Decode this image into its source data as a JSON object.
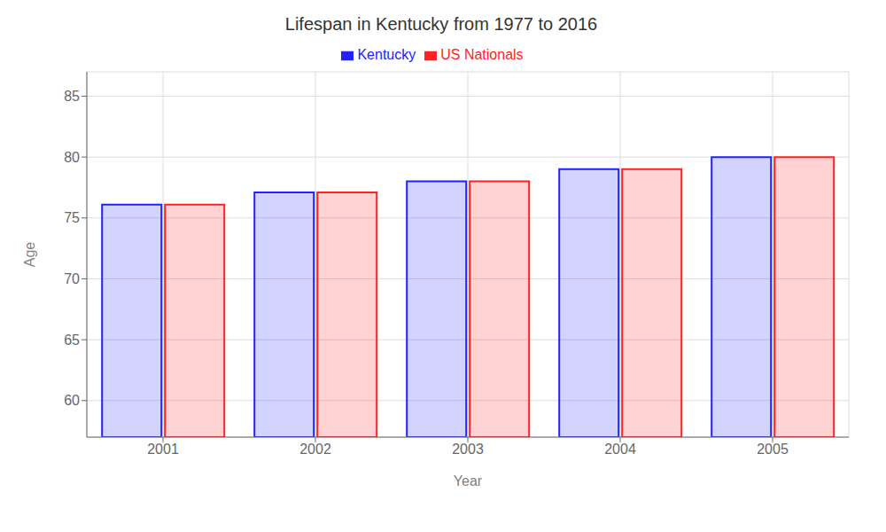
{
  "chart_data": {
    "type": "bar",
    "title": "Lifespan in Kentucky from 1977 to 2016",
    "xlabel": "Year",
    "ylabel": "Age",
    "categories": [
      "2001",
      "2002",
      "2003",
      "2004",
      "2005"
    ],
    "series": [
      {
        "name": "Kentucky",
        "color": "#2222ff",
        "values": [
          76.1,
          77.1,
          78.0,
          79.0,
          80.0
        ]
      },
      {
        "name": "US Nationals",
        "color": "#ff2222",
        "values": [
          76.1,
          77.1,
          78.0,
          79.0,
          80.0
        ]
      }
    ],
    "ylim": [
      57,
      87
    ],
    "yticks": [
      60,
      65,
      70,
      75,
      80,
      85
    ],
    "grid": true,
    "legend": "top"
  }
}
